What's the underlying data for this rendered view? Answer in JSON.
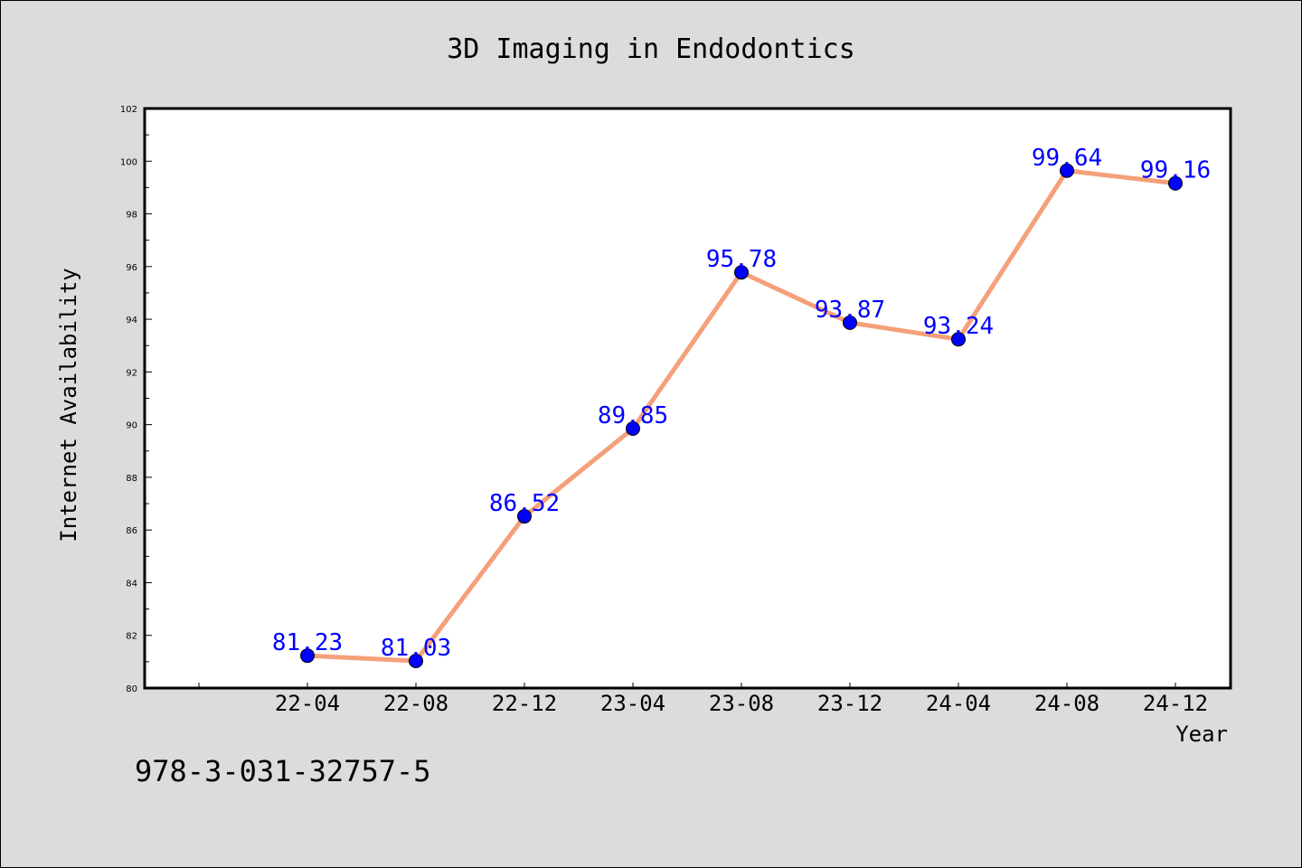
{
  "chart_data": {
    "type": "line",
    "title": "3D Imaging in Endodontics",
    "xlabel": "Year",
    "ylabel": "Internet Availability",
    "categories": [
      "22-04",
      "22-08",
      "22-12",
      "23-04",
      "23-08",
      "23-12",
      "24-04",
      "24-08",
      "24-12"
    ],
    "series": [
      {
        "values": [
          81.23,
          81.03,
          86.52,
          89.85,
          95.78,
          93.87,
          93.24,
          99.64,
          99.16
        ]
      }
    ],
    "data_labels": [
      "81.23",
      "81.03",
      "86.52",
      "89.85",
      "95.78",
      "93.87",
      "93.24",
      "99.64",
      "99.16"
    ],
    "ylim": [
      80,
      102
    ],
    "yticks": [
      "80",
      "82",
      "84",
      "86",
      "88",
      "90",
      "92",
      "94",
      "96",
      "98",
      "100",
      "102"
    ],
    "grid": false,
    "colors": {
      "line": "#f4a07a",
      "marker": "#0000ff",
      "label": "#0000ff",
      "background": "#dcdcdc",
      "plot_bg": "#ffffff"
    }
  },
  "footer": {
    "isbn": "978-3-031-32757-5"
  }
}
